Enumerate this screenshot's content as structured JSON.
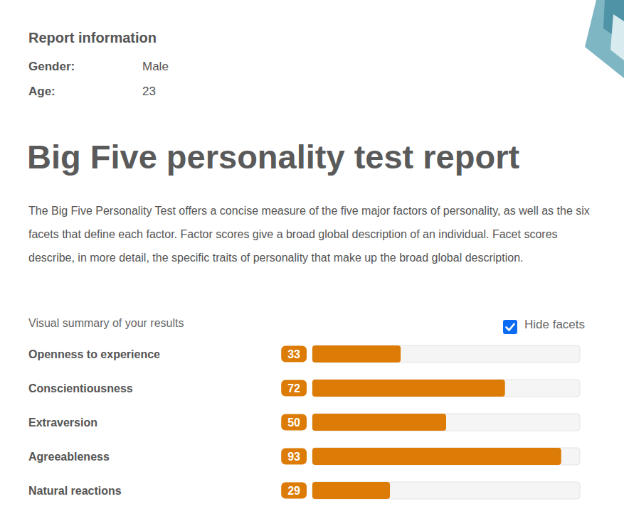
{
  "report_information": {
    "heading": "Report information",
    "fields": [
      {
        "label": "Gender:",
        "value": "Male"
      },
      {
        "label": "Age:",
        "value": 23
      }
    ]
  },
  "title": "Big Five personality test report",
  "description": "The Big Five Personality Test offers a concise measure of the five major factors of personality, as well as the six facets that define each factor. Factor scores give a broad global description of an individual. Facet scores describe, in more detail, the specific traits of personality that make up the broad global description.",
  "summary_label": "Visual summary of your results",
  "hide_facets": {
    "label": "Hide facets",
    "checked": true
  },
  "chart_data": {
    "type": "bar",
    "orientation": "horizontal",
    "categories": [
      "Openness to experience",
      "Conscientiousness",
      "Extraversion",
      "Agreeableness",
      "Natural reactions"
    ],
    "values": [
      33,
      72,
      50,
      93,
      29
    ],
    "color": "#dc7b05",
    "xlim": [
      0,
      100
    ],
    "data_labels": true,
    "tick_labels": false,
    "grid": false
  }
}
